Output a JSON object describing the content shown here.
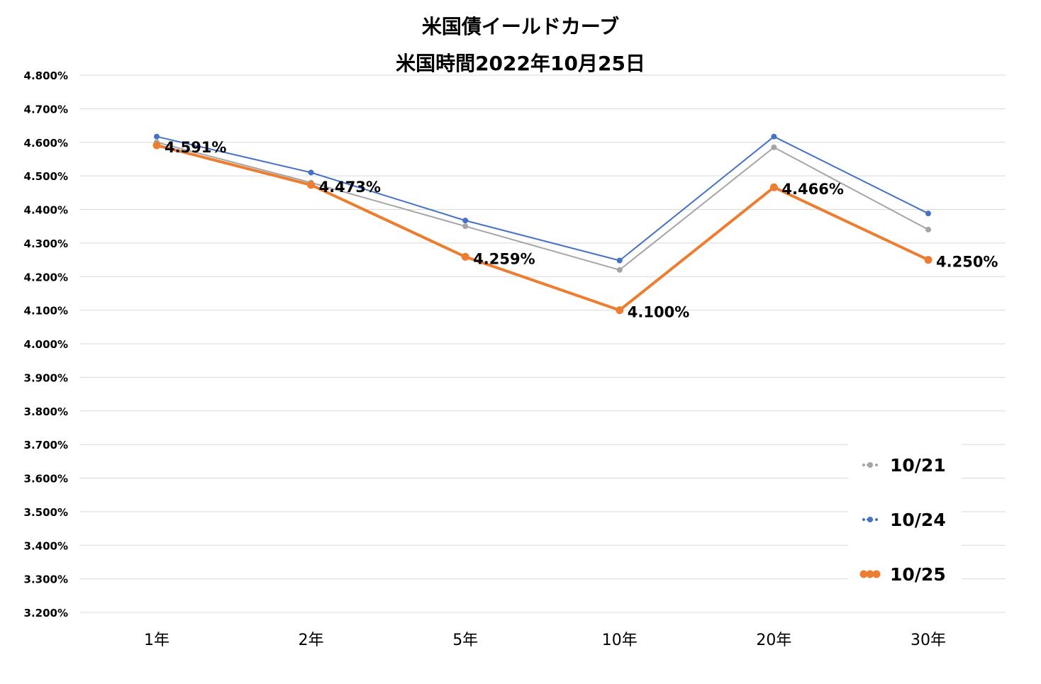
{
  "chart_data": {
    "type": "line",
    "title": "米国債イールドカーブ",
    "subtitle": "米国時間2022年10月25日",
    "categories": [
      "1年",
      "2年",
      "5年",
      "10年",
      "20年",
      "30年"
    ],
    "ylim": [
      3.2,
      4.8
    ],
    "yticks": [
      "3.200%",
      "3.300%",
      "3.400%",
      "3.500%",
      "3.600%",
      "3.700%",
      "3.800%",
      "3.900%",
      "4.000%",
      "4.100%",
      "4.200%",
      "4.300%",
      "4.400%",
      "4.500%",
      "4.600%",
      "4.700%",
      "4.800%"
    ],
    "grid": true,
    "legend_position": "right-bottom",
    "series": [
      {
        "name": "10/21",
        "color": "#a5a5a5",
        "values": [
          4.6,
          4.48,
          4.35,
          4.22,
          4.585,
          4.34
        ]
      },
      {
        "name": "10/24",
        "color": "#4472c4",
        "values": [
          4.617,
          4.51,
          4.367,
          4.248,
          4.617,
          4.388
        ]
      },
      {
        "name": "10/25",
        "color": "#ed7d31",
        "values": [
          4.591,
          4.473,
          4.259,
          4.1,
          4.466,
          4.25
        ],
        "data_labels": [
          "4.591%",
          "4.473%",
          "4.259%",
          "4.100%",
          "4.466%",
          "4.250%"
        ]
      }
    ]
  }
}
